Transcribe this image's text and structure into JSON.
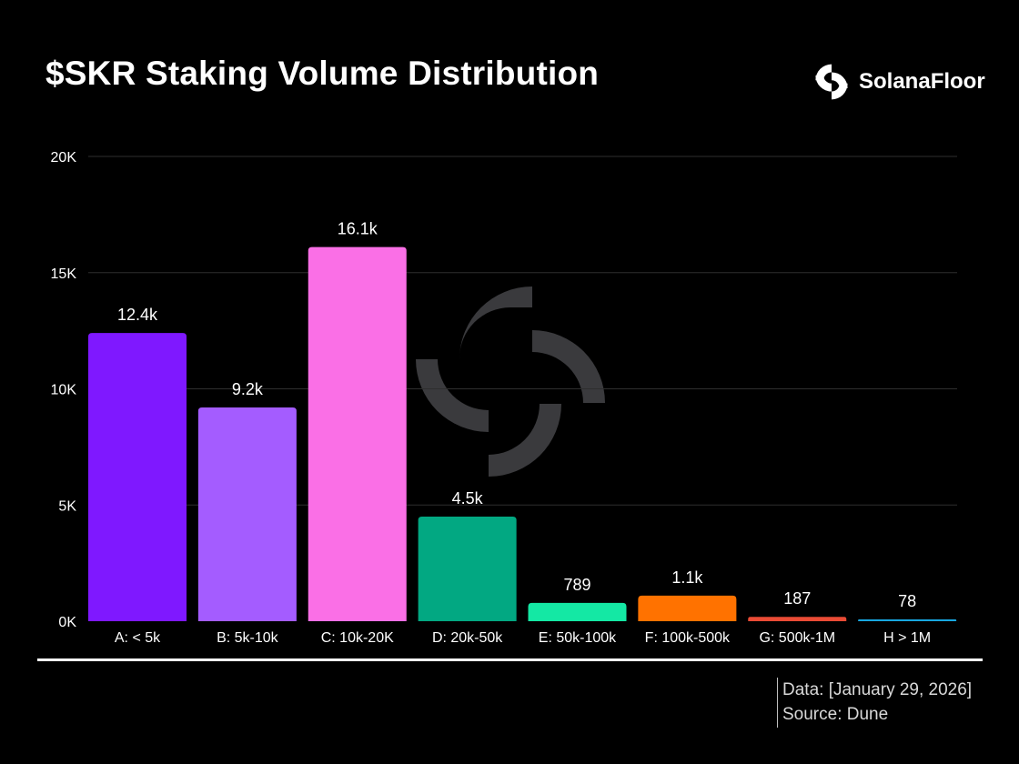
{
  "header": {
    "title": "$SKR Staking Volume Distribution",
    "brand": {
      "name": "SolanaFloor",
      "icon": "solanafloor-logo-icon"
    }
  },
  "footer": {
    "data_date": "Data: [January 29, 2026]",
    "source": "Source: Dune"
  },
  "colors": {
    "background": "#000000",
    "gridline": "#2e2e2e",
    "text": "#ffffff",
    "watermark": "#3a3a3d"
  },
  "chart_data": {
    "type": "bar",
    "title": "$SKR Staking Volume Distribution",
    "xlabel": "",
    "ylabel": "",
    "ylim": [
      0,
      20000
    ],
    "y_ticks": [
      {
        "value": 0,
        "label": "0K"
      },
      {
        "value": 5000,
        "label": "5K"
      },
      {
        "value": 10000,
        "label": "10K"
      },
      {
        "value": 15000,
        "label": "15K"
      },
      {
        "value": 20000,
        "label": "20K"
      }
    ],
    "grid": true,
    "legend": "none",
    "categories": [
      "A: < 5k",
      "B: 5k-10k",
      "C: 10k-20K",
      "D: 20k-50k",
      "E: 50k-100k",
      "F: 100k-500k",
      "G: 500k-1M",
      "H > 1M"
    ],
    "values": [
      12400,
      9200,
      16100,
      4500,
      789,
      1100,
      187,
      78
    ],
    "data_labels": [
      "12.4k",
      "9.2k",
      "16.1k",
      "4.5k",
      "789",
      "1.1k",
      "187",
      "78"
    ],
    "colors": [
      "#7f18ff",
      "#a45cff",
      "#fa6fe6",
      "#02a882",
      "#14e8a4",
      "#ff7200",
      "#ea4b35",
      "#18a7e0"
    ]
  }
}
